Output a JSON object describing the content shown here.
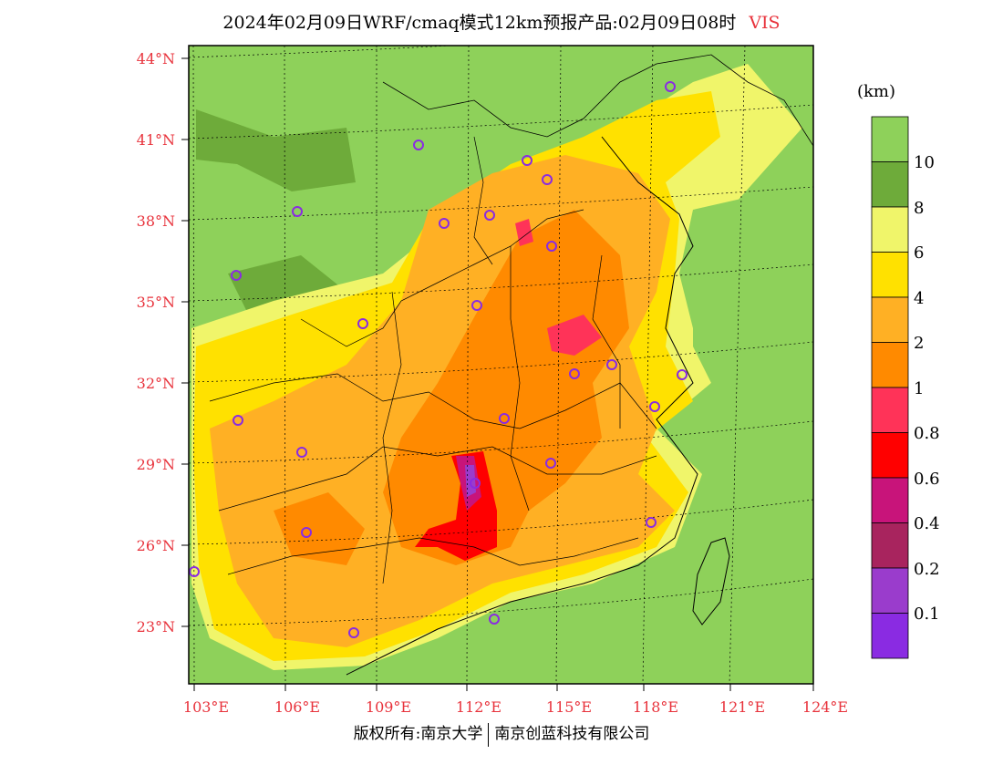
{
  "title": {
    "main": "2024年02月09日WRF/cmaq模式12km预报产品:02月09日08时",
    "variable": "VIS"
  },
  "legend": {
    "unit": "(km)",
    "labels": [
      "10",
      "8",
      "6",
      "4",
      "2",
      "1",
      "0.8",
      "0.6",
      "0.4",
      "0.2",
      "0.1"
    ],
    "colors": [
      "#8ed15a",
      "#6eab3a",
      "#f0f56a",
      "#ffe100",
      "#ffb024",
      "#ff8a00",
      "#ff3358",
      "#ff0000",
      "#c8147a",
      "#a8245e",
      "#9a3ccc",
      "#8a2be2"
    ]
  },
  "axes": {
    "lat_labels": [
      "44°N",
      "41°N",
      "38°N",
      "35°N",
      "32°N",
      "29°N",
      "26°N",
      "23°N"
    ],
    "lon_labels": [
      "103°E",
      "106°E",
      "109°E",
      "112°E",
      "115°E",
      "118°E",
      "121°E",
      "124°E"
    ]
  },
  "footer": {
    "left": "版权所有:南京大学",
    "right": "南京创蓝科技有限公司"
  }
}
